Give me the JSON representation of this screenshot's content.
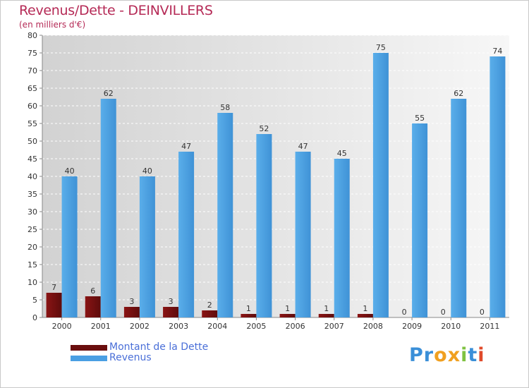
{
  "chart_data": {
    "type": "bar",
    "title": "Revenus/Dette - DEINVILLERS",
    "subtitle": "(en milliers d'€)",
    "categories": [
      "2000",
      "2001",
      "2002",
      "2003",
      "2004",
      "2005",
      "2006",
      "2007",
      "2008",
      "2009",
      "2010",
      "2011"
    ],
    "series": [
      {
        "name": "Montant de la Dette",
        "color": "#7a1010",
        "values": [
          7,
          6,
          3,
          3,
          2,
          1,
          1,
          1,
          1,
          0,
          0,
          0
        ]
      },
      {
        "name": "Revenus",
        "color": "#4a9fe3",
        "values": [
          40,
          62,
          40,
          47,
          58,
          52,
          47,
          45,
          75,
          55,
          62,
          74
        ]
      }
    ],
    "ylim": [
      0,
      80
    ],
    "yticks": [
      "0",
      "5",
      "10",
      "15",
      "20",
      "25",
      "30",
      "35",
      "40",
      "45",
      "50",
      "55",
      "60",
      "65",
      "70",
      "75",
      "80"
    ],
    "grid": true,
    "xlabel": "",
    "ylabel": ""
  },
  "legend": {
    "items": [
      {
        "label": "Montant de la Dette",
        "color": "#7a1010"
      },
      {
        "label": "Revenus",
        "color": "#4a9fe3"
      }
    ]
  },
  "logo": {
    "letters": [
      "P",
      "r",
      "o",
      "x",
      "i",
      "t",
      "i"
    ],
    "colors": [
      "#3a8fd8",
      "#3a8fd8",
      "#f0a020",
      "#f0a020",
      "#7fc241",
      "#3a8fd8",
      "#e04a2a"
    ]
  }
}
